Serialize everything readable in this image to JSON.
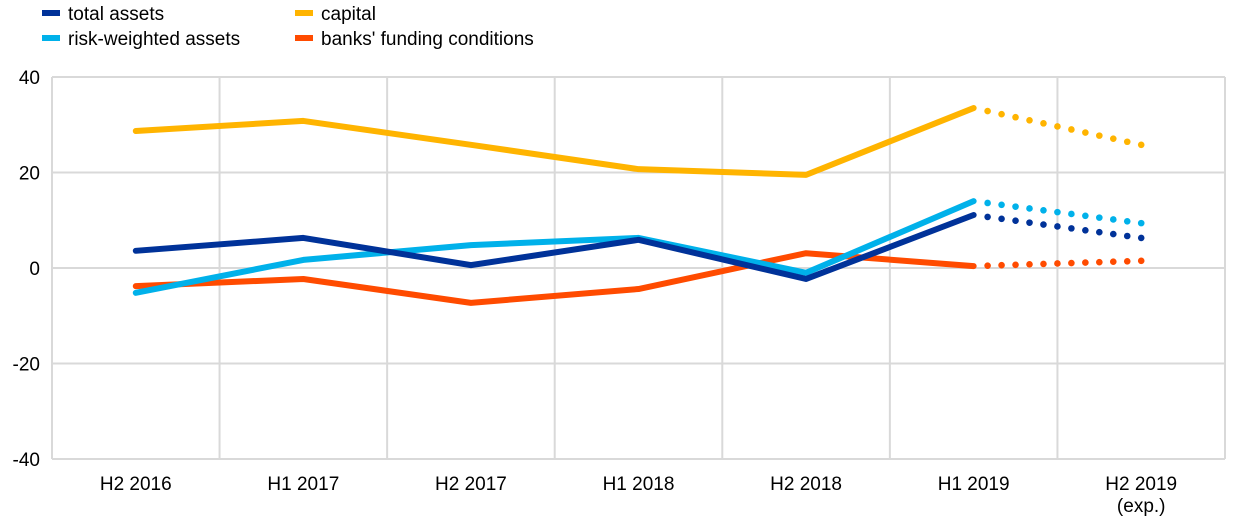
{
  "chart_data": {
    "type": "line",
    "title": "",
    "xlabel": "",
    "ylabel": "",
    "ylim": [
      -40,
      40
    ],
    "yticks": [
      -40,
      -20,
      0,
      20,
      40
    ],
    "grid": true,
    "legend_placement": "top-left",
    "categories": [
      [
        "H2 2016"
      ],
      [
        "H1 2017"
      ],
      [
        "H2 2017"
      ],
      [
        "H1 2018"
      ],
      [
        "H2 2018"
      ],
      [
        "H1 2019"
      ],
      [
        "H2 2019",
        "(exp.)"
      ]
    ],
    "expected_from_index": 5,
    "series": [
      {
        "name": "total assets",
        "color": "#003299",
        "values": [
          3.6,
          6.3,
          0.6,
          5.9,
          -2.3,
          11.1,
          6.3
        ]
      },
      {
        "name": "risk-weighted assets",
        "color": "#00b1ea",
        "values": [
          -5.2,
          1.7,
          4.8,
          6.3,
          -1.0,
          14.0,
          9.4
        ]
      },
      {
        "name": "capital",
        "color": "#ffb400",
        "values": [
          28.7,
          30.8,
          25.8,
          20.7,
          19.5,
          33.5,
          25.8
        ]
      },
      {
        "name": "banks' funding conditions",
        "color": "#ff4b00",
        "values": [
          -3.8,
          -2.3,
          -7.3,
          -4.4,
          3.1,
          0.4,
          1.5
        ]
      }
    ]
  }
}
